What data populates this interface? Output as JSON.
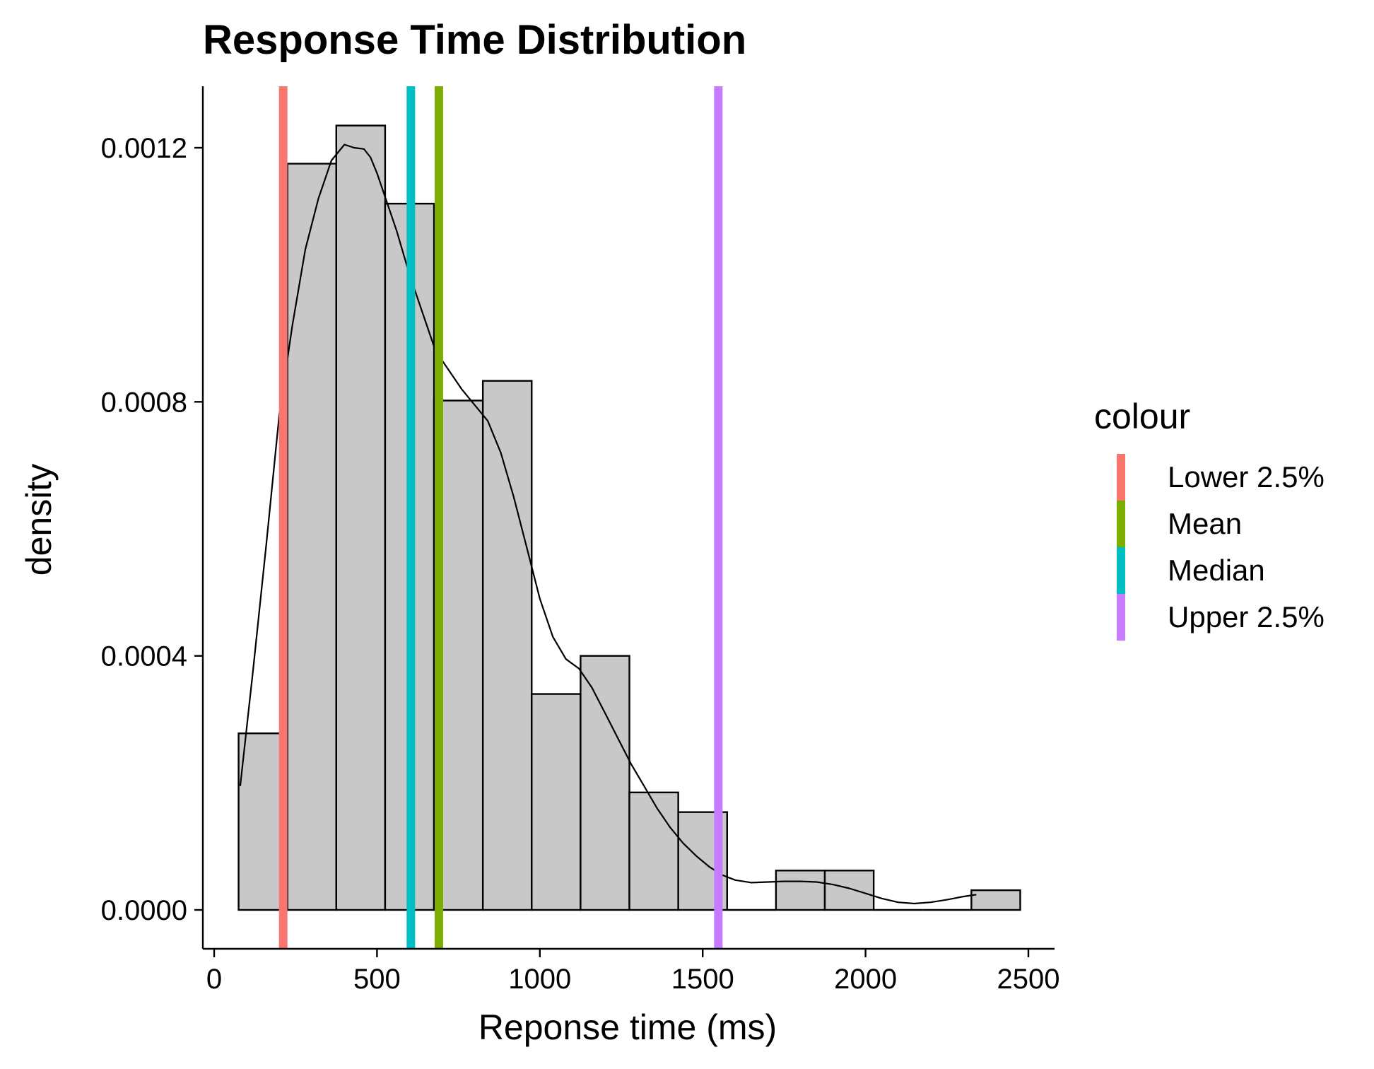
{
  "chart_data": {
    "type": "histogram",
    "title": "Response Time Distribution",
    "xlabel": "Reponse time (ms)",
    "ylabel": "density",
    "xlim": [
      -50,
      2600
    ],
    "ylim": [
      -5e-05,
      0.0013
    ],
    "xticks": [
      0,
      500,
      1000,
      1500,
      2000,
      2500
    ],
    "xtick_labels": [
      "0",
      "500",
      "1000",
      "1500",
      "2000",
      "2500"
    ],
    "yticks": [
      0,
      0.0004,
      0.0008,
      0.0012
    ],
    "ytick_labels": [
      "0.0000",
      "0.0004",
      "0.0008",
      "0.0012"
    ],
    "bin_width": 150,
    "bins": [
      {
        "x0": 75,
        "x1": 225,
        "density": 0.000278
      },
      {
        "x0": 225,
        "x1": 375,
        "density": 0.001175
      },
      {
        "x0": 375,
        "x1": 525,
        "density": 0.001235
      },
      {
        "x0": 525,
        "x1": 675,
        "density": 0.001112
      },
      {
        "x0": 675,
        "x1": 825,
        "density": 0.000802
      },
      {
        "x0": 825,
        "x1": 975,
        "density": 0.000833
      },
      {
        "x0": 975,
        "x1": 1125,
        "density": 0.00034
      },
      {
        "x0": 1125,
        "x1": 1275,
        "density": 0.0004
      },
      {
        "x0": 1275,
        "x1": 1425,
        "density": 0.000185
      },
      {
        "x0": 1425,
        "x1": 1575,
        "density": 0.000154
      },
      {
        "x0": 1575,
        "x1": 1725,
        "density": 0.0
      },
      {
        "x0": 1725,
        "x1": 1875,
        "density": 6.2e-05
      },
      {
        "x0": 1875,
        "x1": 2025,
        "density": 6.2e-05
      },
      {
        "x0": 2025,
        "x1": 2175,
        "density": 0.0
      },
      {
        "x0": 2175,
        "x1": 2325,
        "density": 0.0
      },
      {
        "x0": 2325,
        "x1": 2475,
        "density": 3.1e-05
      }
    ],
    "density_curve": {
      "x": [
        80,
        120,
        160,
        200,
        240,
        280,
        320,
        360,
        400,
        430,
        460,
        480,
        500,
        520,
        560,
        600,
        640,
        680,
        720,
        760,
        800,
        840,
        880,
        920,
        960,
        1000,
        1040,
        1080,
        1120,
        1160,
        1200,
        1240,
        1280,
        1320,
        1360,
        1400,
        1440,
        1480,
        1520,
        1560,
        1600,
        1650,
        1700,
        1750,
        1800,
        1850,
        1900,
        1950,
        2000,
        2050,
        2100,
        2150,
        2200,
        2250,
        2300,
        2340
      ],
      "y": [
        0.000195,
        0.00038,
        0.000575,
        0.00078,
        0.00092,
        0.00104,
        0.00112,
        0.00118,
        0.001205,
        0.0012,
        0.001198,
        0.001185,
        0.00116,
        0.00113,
        0.00107,
        0.001,
        0.00094,
        0.00088,
        0.00085,
        0.00082,
        0.000795,
        0.00077,
        0.00072,
        0.00065,
        0.00057,
        0.00049,
        0.00043,
        0.000395,
        0.00038,
        0.00035,
        0.00031,
        0.00027,
        0.00023,
        0.000195,
        0.00016,
        0.00013,
        0.000105,
        8.5e-05,
        6.8e-05,
        5.5e-05,
        4.7e-05,
        4.3e-05,
        4.4e-05,
        4.5e-05,
        4.5e-05,
        4.4e-05,
        4e-05,
        3.4e-05,
        2.6e-05,
        1.8e-05,
        1.2e-05,
        1e-05,
        1.2e-05,
        1.6e-05,
        2.1e-05,
        2.4e-05
      ]
    },
    "vlines": [
      {
        "name": "Lower 2.5%",
        "x": 212,
        "color": "#F8766D"
      },
      {
        "name": "Mean",
        "x": 690,
        "color": "#7CAE00"
      },
      {
        "name": "Median",
        "x": 604,
        "color": "#00BFC4"
      },
      {
        "name": "Upper 2.5%",
        "x": 1548,
        "color": "#C77CFF"
      }
    ],
    "bar_fill": "#C8C8C8",
    "bar_stroke": "#000000",
    "legend": {
      "title": "colour",
      "position": "right",
      "entries": [
        {
          "label": "Lower 2.5%",
          "color": "#F8766D"
        },
        {
          "label": "Mean",
          "color": "#7CAE00"
        },
        {
          "label": "Median",
          "color": "#00BFC4"
        },
        {
          "label": "Upper 2.5%",
          "color": "#C77CFF"
        }
      ]
    },
    "grid": false
  }
}
